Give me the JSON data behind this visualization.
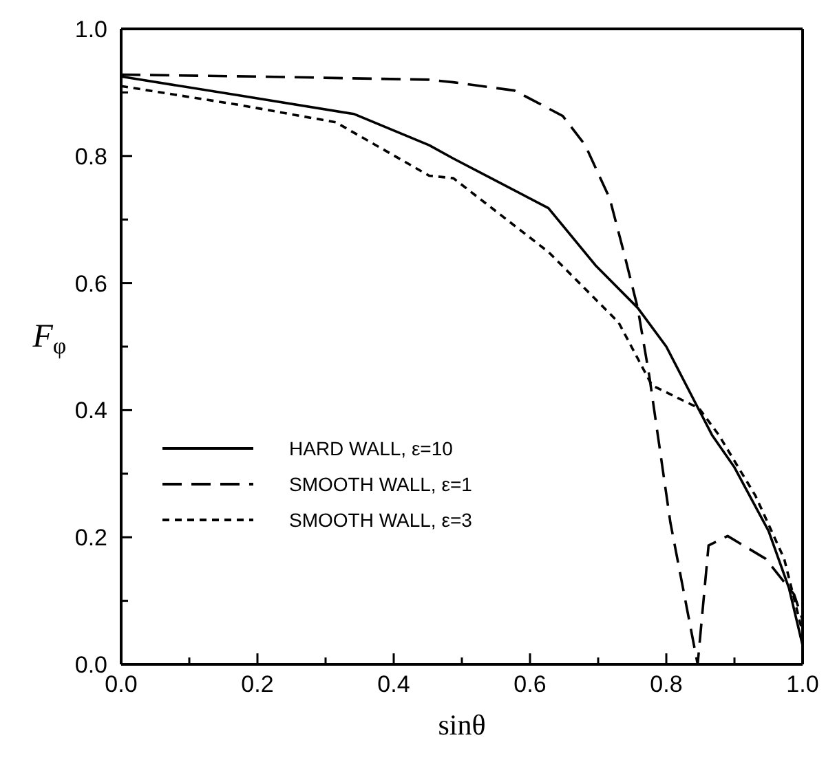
{
  "chart_data": {
    "type": "line",
    "xlabel": "sinθ",
    "ylabel": "F$_{φ}$",
    "xlim": [
      0,
      1
    ],
    "ylim": [
      0,
      1
    ],
    "xticks": [
      {
        "value": 0,
        "label": "0.0"
      },
      {
        "value": 0.1,
        "label": null
      },
      {
        "value": 0.2,
        "label": "0.2"
      },
      {
        "value": 0.3,
        "label": null
      },
      {
        "value": 0.4,
        "label": "0.4"
      },
      {
        "value": 0.5,
        "label": null
      },
      {
        "value": 0.6,
        "label": "0.6"
      },
      {
        "value": 0.7,
        "label": null
      },
      {
        "value": 0.8,
        "label": "0.8"
      },
      {
        "value": 0.9,
        "label": null
      },
      {
        "value": 1,
        "label": "1.0"
      }
    ],
    "yticks": [
      {
        "value": 0,
        "label": "0.0"
      },
      {
        "value": 0.1,
        "label": null
      },
      {
        "value": 0.2,
        "label": "0.2"
      },
      {
        "value": 0.3,
        "label": null
      },
      {
        "value": 0.4,
        "label": "0.4"
      },
      {
        "value": 0.5,
        "label": null
      },
      {
        "value": 0.6,
        "label": "0.6"
      },
      {
        "value": 0.7,
        "label": null
      },
      {
        "value": 0.8,
        "label": "0.8"
      },
      {
        "value": 0.9,
        "label": null
      },
      {
        "value": 1,
        "label": "1.0"
      }
    ],
    "grid": false,
    "legend": "bottom left",
    "marker": "none",
    "series": [
      {
        "name": "HARD WALL, ε=10",
        "color": "#000000",
        "line_style": "solid",
        "x": [
          0,
          0.175,
          0.342,
          0.452,
          0.4875,
          0.627,
          0.696,
          0.758,
          0.8,
          0.867,
          0.9,
          0.95,
          0.98,
          1
        ],
        "values": [
          0.925,
          0.895,
          0.866,
          0.817,
          0.796,
          0.718,
          0.628,
          0.561,
          0.5,
          0.361,
          0.31,
          0.21,
          0.12,
          0.03
        ]
      },
      {
        "name": "SMOOTH WALL, ε=1",
        "color": "#000000",
        "line_style": "dashed",
        "x": [
          0,
          0.2,
          0.452,
          0.4875,
          0.577,
          0.648,
          0.681,
          0.717,
          0.7375,
          0.758,
          0.775,
          0.806,
          0.846,
          0.862,
          0.89,
          0.946,
          0.9875,
          1
        ],
        "values": [
          0.928,
          0.925,
          0.92,
          0.916,
          0.903,
          0.863,
          0.817,
          0.733,
          0.649,
          0.561,
          0.454,
          0.223,
          0.0,
          0.187,
          0.202,
          0.166,
          0.11,
          0.07
        ]
      },
      {
        "name": "SMOOTH WALL, ε=3",
        "color": "#000000",
        "line_style": "dotted",
        "x": [
          0,
          0.175,
          0.315,
          0.452,
          0.4875,
          0.627,
          0.73,
          0.779,
          0.848,
          0.877,
          0.931,
          0.973,
          1
        ],
        "values": [
          0.91,
          0.88,
          0.853,
          0.769,
          0.765,
          0.649,
          0.538,
          0.439,
          0.403,
          0.361,
          0.265,
          0.166,
          0.05
        ]
      }
    ]
  }
}
